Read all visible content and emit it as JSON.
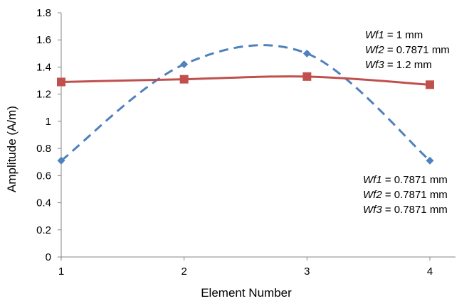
{
  "chart_data": {
    "type": "line",
    "title": "",
    "xlabel": "Element Number",
    "ylabel": "Amplitude (A/m)",
    "x": [
      1,
      2,
      3,
      4
    ],
    "xticks": [
      "1",
      "2",
      "3",
      "4"
    ],
    "ylim": [
      0,
      1.8
    ],
    "yticks": [
      "0",
      "0.2",
      "0.4",
      "0.6",
      "0.8",
      "1",
      "1.2",
      "1.4",
      "1.6",
      "1.8"
    ],
    "grid": false,
    "legend": "none",
    "series": [
      {
        "values": [
          0.71,
          1.42,
          1.5,
          0.71
        ],
        "color": "#4f81bd",
        "line_style": "dashed",
        "marker": "diamond",
        "smooth": true
      },
      {
        "values": [
          1.29,
          1.31,
          1.33,
          1.27
        ],
        "color": "#c0504d",
        "line_style": "solid",
        "marker": "square",
        "smooth": true
      }
    ],
    "annotations": [
      {
        "position": "top-right",
        "lines": [
          {
            "var": "Wf1",
            "value": " = 1 mm"
          },
          {
            "var": "Wf2",
            "value": " = 0.7871 mm"
          },
          {
            "var": "Wf3",
            "value": " = 1.2 mm"
          }
        ]
      },
      {
        "position": "bottom-right",
        "lines": [
          {
            "var": "Wf1",
            "value": " = 0.7871 mm"
          },
          {
            "var": "Wf2",
            "value": " = 0.7871 mm"
          },
          {
            "var": "Wf3",
            "value": " = 0.7871 mm"
          }
        ]
      }
    ]
  }
}
